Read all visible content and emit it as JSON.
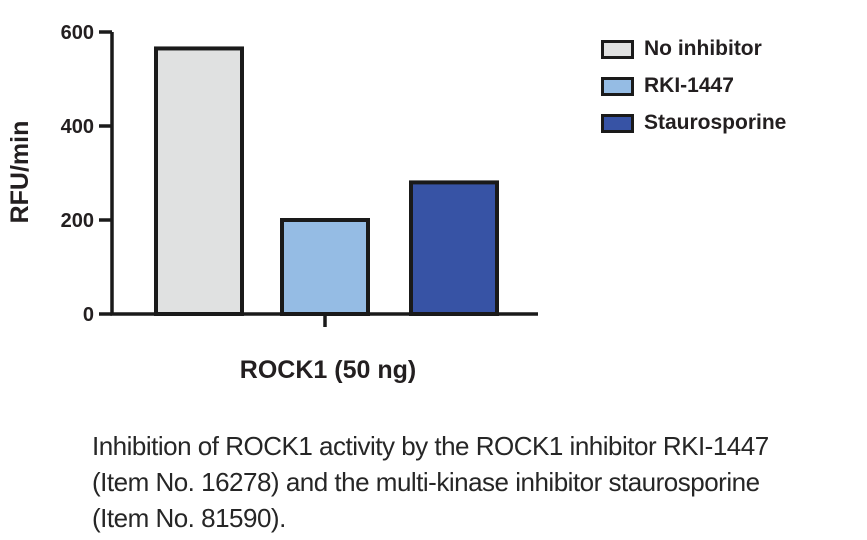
{
  "chart_data": {
    "type": "bar",
    "title": "",
    "xlabel": "ROCK1 (50 ng)",
    "ylabel": "RFU/min",
    "ylim": [
      0,
      600
    ],
    "yticks": [
      0,
      200,
      400,
      600
    ],
    "categories": [
      "ROCK1 (50 ng)"
    ],
    "series": [
      {
        "name": "No inhibitor",
        "values": [
          565
        ],
        "color": "#E0E1E1"
      },
      {
        "name": "RKI-1447",
        "values": [
          200
        ],
        "color": "#95BCE4"
      },
      {
        "name": "Staurosporine",
        "values": [
          280
        ],
        "color": "#3753A5"
      }
    ],
    "grid": false,
    "legend_position": "top-right",
    "bar_outline_color": "#1A1A1A",
    "axis_color": "#1A1A1A"
  },
  "caption": {
    "text": "Inhibition of ROCK1 activity by the ROCK1 inhibitor RKI-1447\n(Item No. 16278) and the multi-kinase inhibitor staurosporine\n(Item No. 81590)."
  }
}
